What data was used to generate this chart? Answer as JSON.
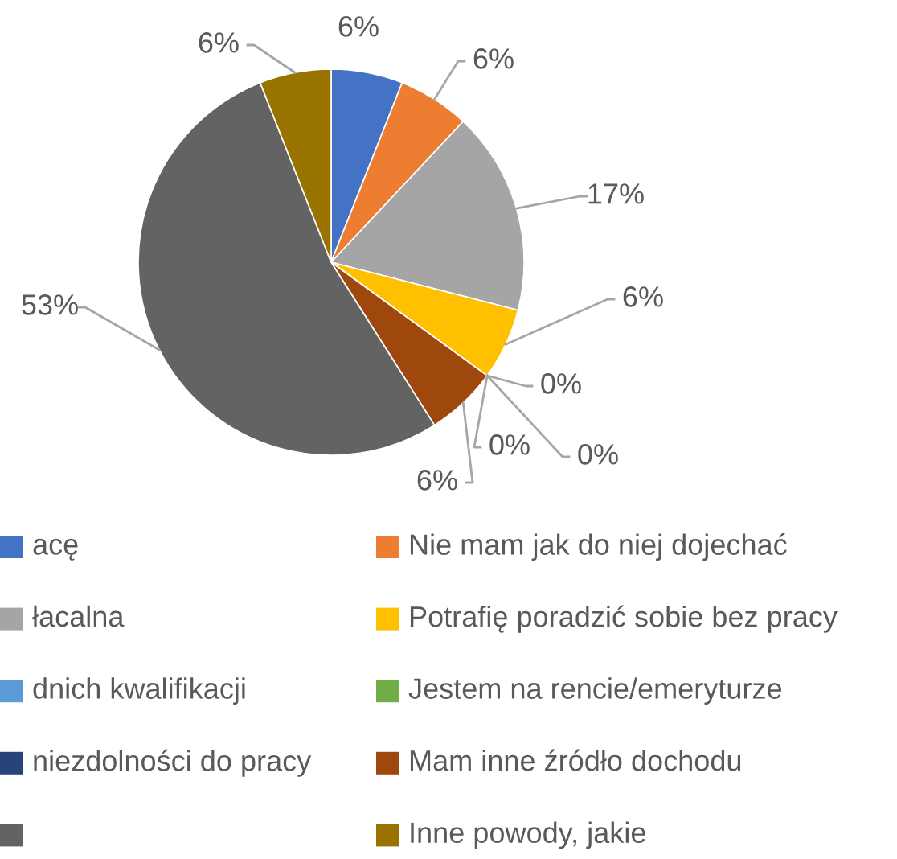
{
  "chart_data": {
    "type": "pie",
    "categories": [
      "acę",
      "Nie mam jak do niej dojechać",
      "łacalna",
      "Potrafię poradzić sobie bez pracy",
      "dnich kwalifikacji",
      "Jestem na rencie/emeryturze",
      "niezdolności do pracy",
      "Mam inne źródło dochodu",
      null,
      "Inne powody, jakie"
    ],
    "values": [
      6,
      6,
      17,
      6,
      0,
      0,
      0,
      6,
      53,
      6
    ],
    "value_labels": [
      "6%",
      "6%",
      "17%",
      "6%",
      "0%",
      "0%",
      "0%",
      "6%",
      "53%",
      "6%"
    ],
    "colors": [
      "#4472c4",
      "#ed7d31",
      "#a5a5a5",
      "#ffc000",
      "#5b9bd5",
      "#70ad47",
      "#264478",
      "#9e480e",
      "#636363",
      "#997300"
    ],
    "legend": "bottom"
  }
}
